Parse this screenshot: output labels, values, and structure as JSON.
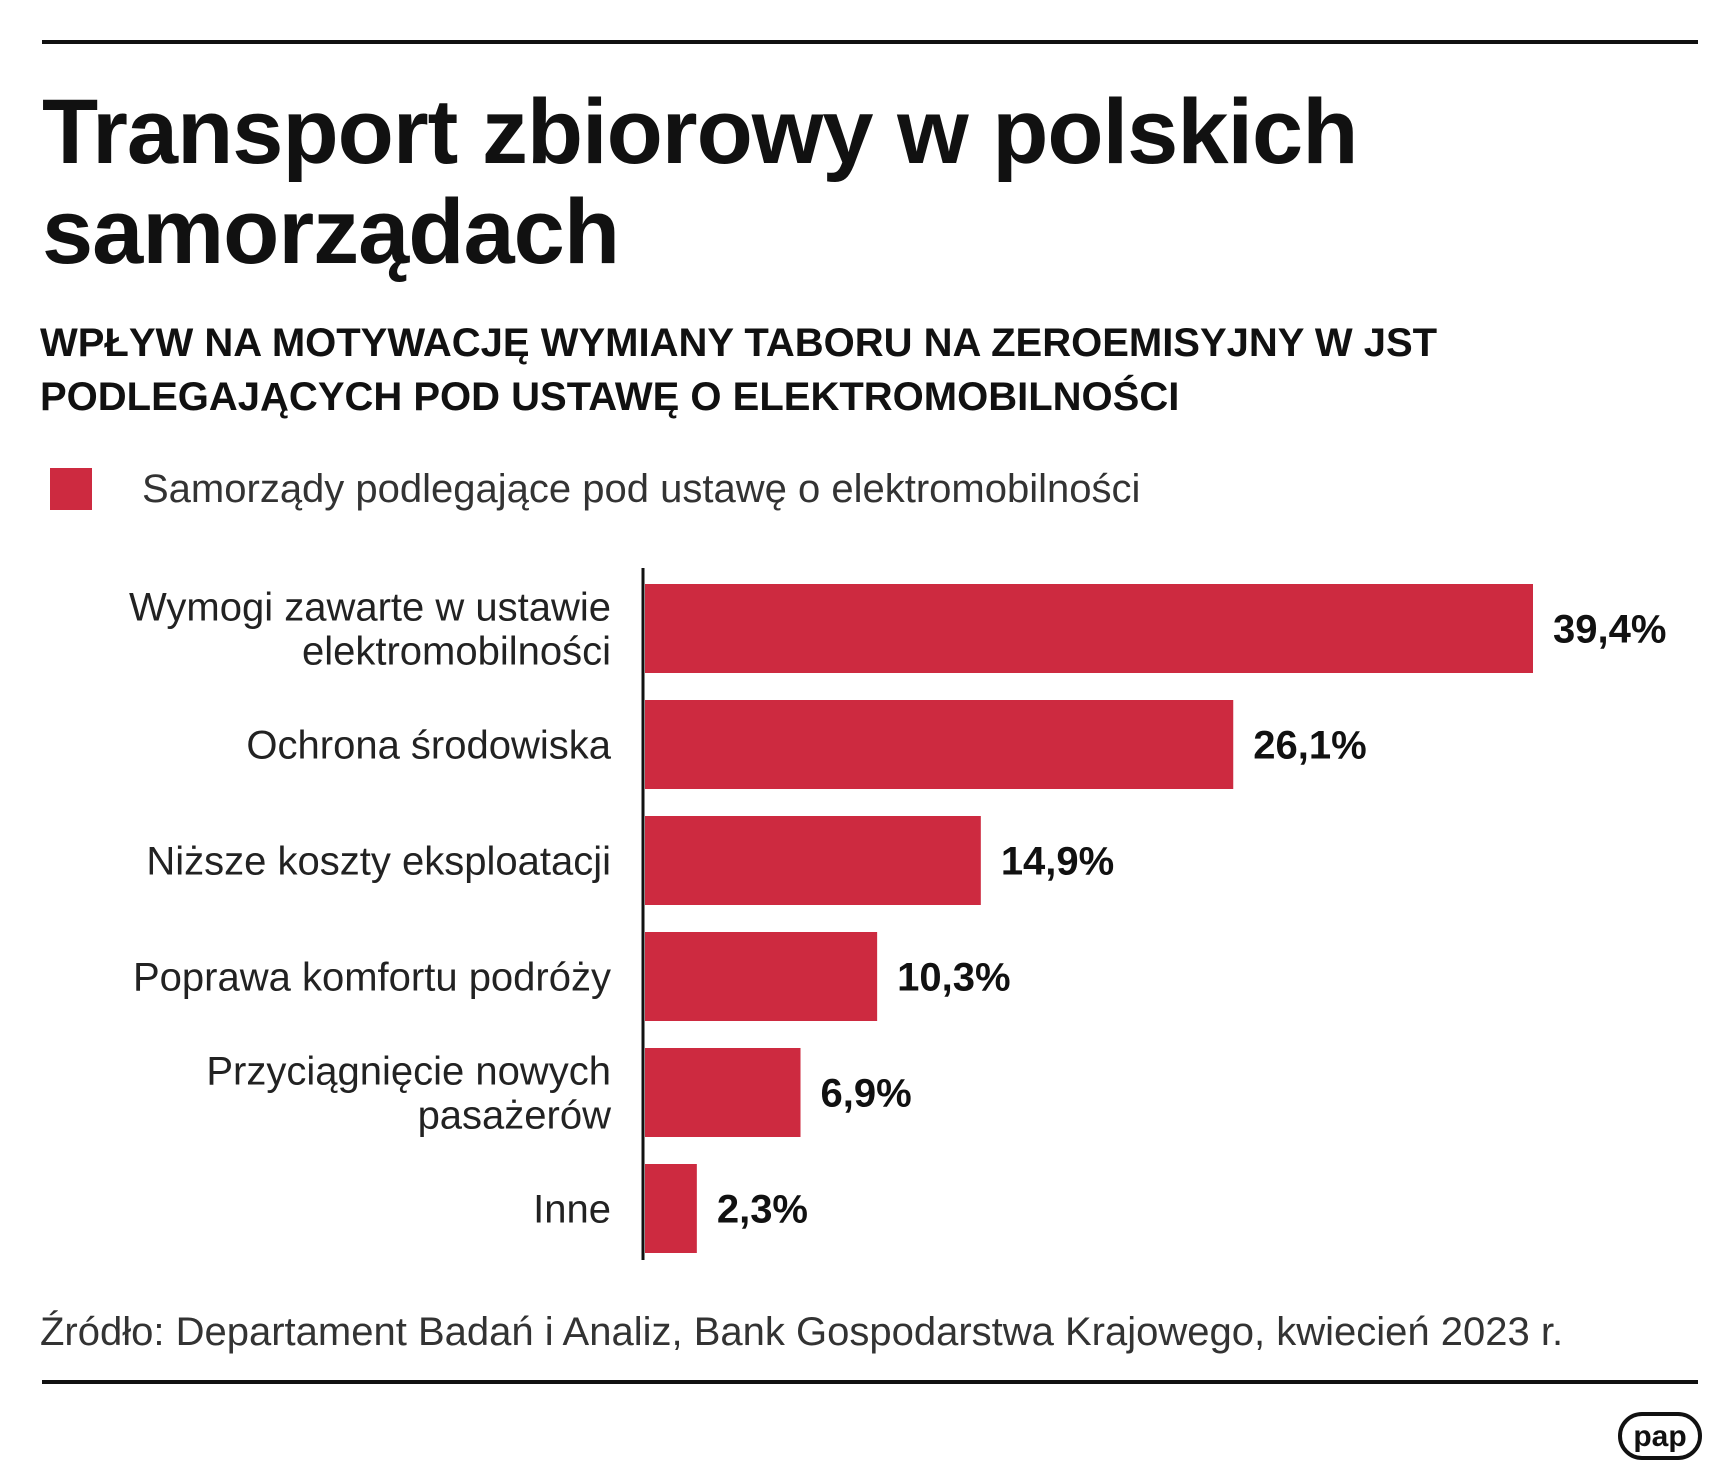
{
  "title": "Transport zbiorowy w polskich samorządach",
  "subtitle": "WPŁYW NA MOTYWACJĘ WYMIANY TABORU NA ZEROEMISYJNY W JST PODLEGAJĄCYCH POD USTAWĘ O ELEKTROMOBILNOŚCI",
  "legend": {
    "label": "Samorządy podlegające pod ustawę o elektromobilności"
  },
  "source": "Źródło: Departament Badań i Analiz, Bank Gospodarstwa Krajowego, kwiecień 2023 r.",
  "logo": {
    "text": "pap"
  },
  "colors": {
    "bar": "#cd2a40",
    "text": "#111111",
    "axis": "#111111"
  },
  "chart_data": {
    "type": "bar",
    "orientation": "horizontal",
    "title": "WPŁYW NA MOTYWACJĘ WYMIANY TABORU NA ZEROEMISYJNY W JST PODLEGAJĄCYCH POD USTAWĘ O ELEKTROMOBILNOŚCI",
    "series_name": "Samorządy podlegające pod ustawę o elektromobilności",
    "unit": "%",
    "categories": [
      [
        "Wymogi zawarte w ustawie",
        "elektromobilności"
      ],
      [
        "Ochrona środowiska"
      ],
      [
        "Niższe koszty eksploatacji"
      ],
      [
        "Poprawa komfortu podróży"
      ],
      [
        "Przyciągnięcie nowych",
        "pasażerów"
      ],
      [
        "Inne"
      ]
    ],
    "values": [
      39.4,
      26.1,
      14.9,
      10.3,
      6.9,
      2.3
    ],
    "value_labels": [
      "39,4%",
      "26,1%",
      "14,9%",
      "10,3%",
      "6,9%",
      "2,3%"
    ],
    "xlim": [
      0,
      39.4
    ],
    "grid": false,
    "legend_position": "top-left"
  }
}
